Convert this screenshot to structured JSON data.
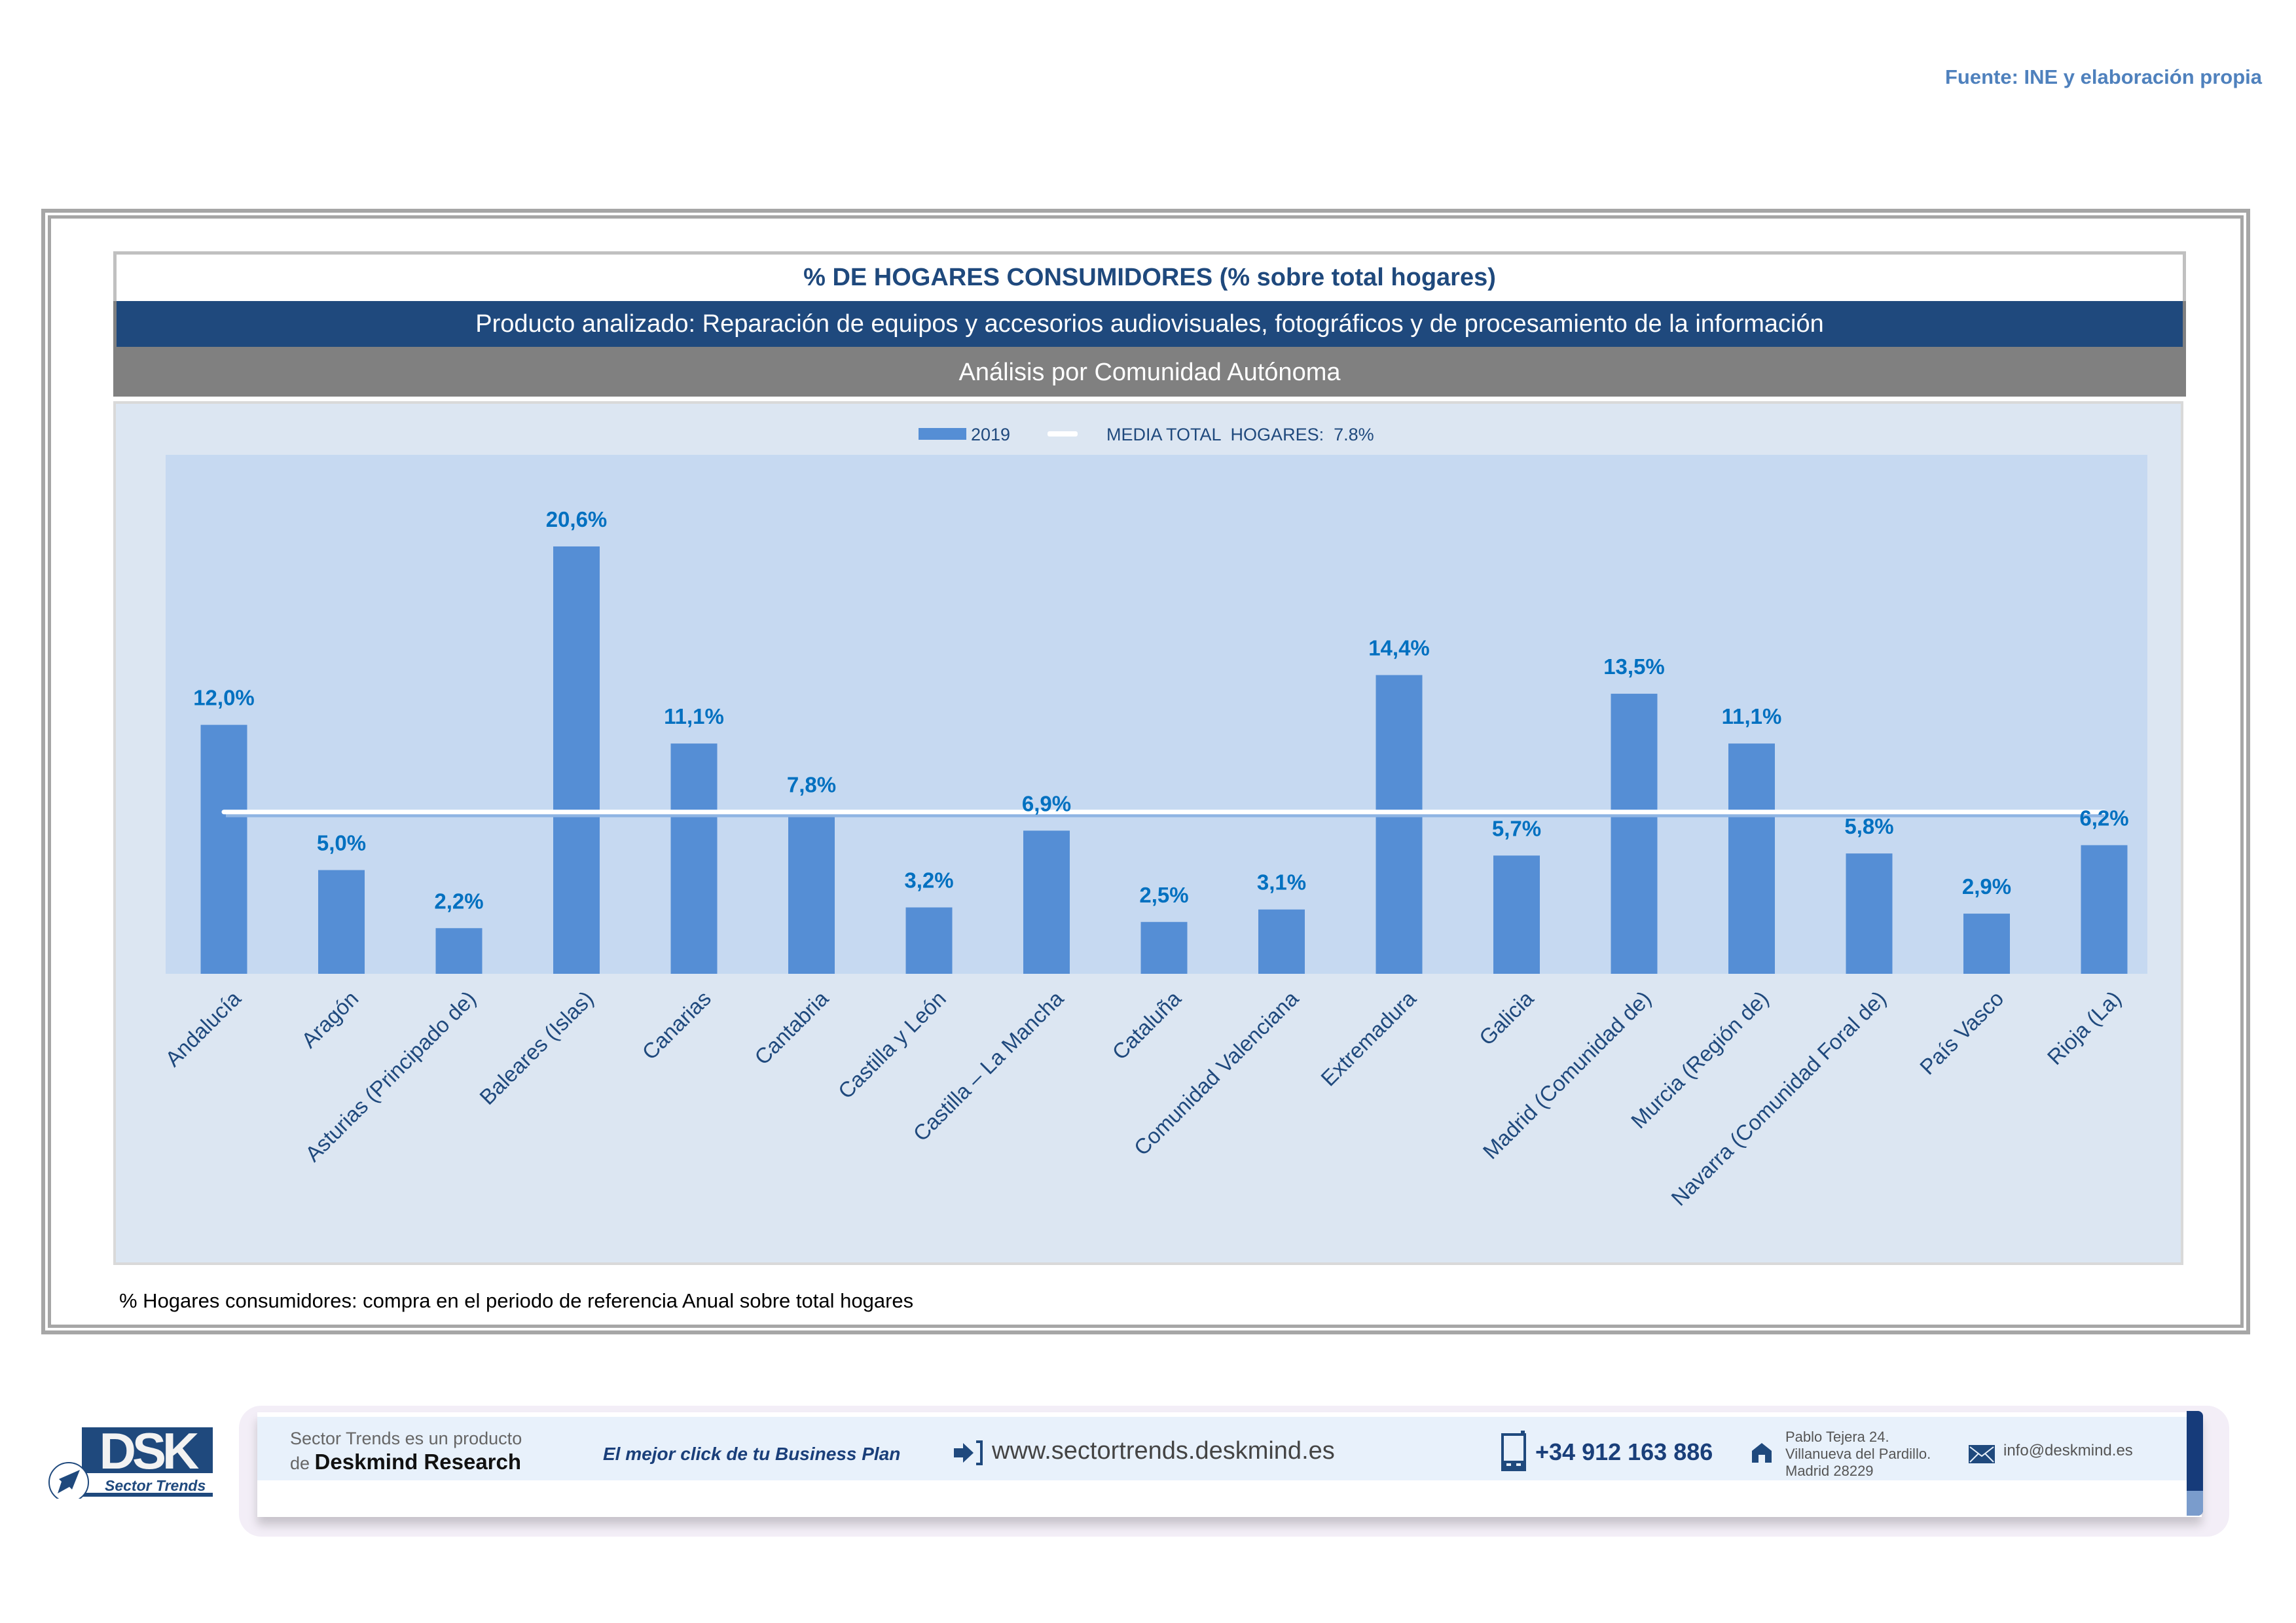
{
  "source": "Fuente: INE y elaboración propia",
  "header": {
    "title": "% DE HOGARES CONSUMIDORES (% sobre total hogares)",
    "product": "Producto analizado: Reparación de equipos y accesorios audiovisuales, fotográficos y de procesamiento de la información",
    "analysis": "Análisis por Comunidad Autónoma"
  },
  "footnote": "% Hogares consumidores: compra en el periodo de referencia Anual sobre total hogares",
  "colors": {
    "bar": "#558ed5",
    "plot_bg": "#c6d9f1",
    "chart_bg": "#dce6f2",
    "media_line": "#ffffff",
    "value_label": "#0070c0",
    "category_label": "#1f497d",
    "title": "#1f497d",
    "product_bg": "#1f497d",
    "analysis_bg": "#808080"
  },
  "chart_data": {
    "type": "bar",
    "title": "% DE HOGARES CONSUMIDORES (% sobre total hogares)",
    "xlabel": "",
    "ylabel": "",
    "ylim": [
      0,
      23
    ],
    "grid": false,
    "legend_position": "top-center",
    "categories": [
      "Andalucía",
      "Aragón",
      "Asturias (Principado de)",
      "Baleares (Islas)",
      "Canarias",
      "Cantabria",
      "Castilla y León",
      "Castilla – La Mancha",
      "Cataluña",
      "Comunidad Valenciana",
      "Extremadura",
      "Galicia",
      "Madrid (Comunidad de)",
      "Murcia (Región de)",
      "Navarra (Comunidad Foral de)",
      "País Vasco",
      "Rioja (La)"
    ],
    "series": [
      {
        "name": "2019",
        "type": "bar",
        "values": [
          12.0,
          5.0,
          2.2,
          20.6,
          11.1,
          7.8,
          3.2,
          6.9,
          2.5,
          3.1,
          14.4,
          5.7,
          13.5,
          11.1,
          5.8,
          2.9,
          6.2
        ],
        "labels": [
          "12,0%",
          "5,0%",
          "2,2%",
          "20,6%",
          "11,1%",
          "7,8%",
          "3,2%",
          "6,9%",
          "2,5%",
          "3,1%",
          "14,4%",
          "5,7%",
          "13,5%",
          "11,1%",
          "5,8%",
          "2,9%",
          "6,2%"
        ]
      },
      {
        "name": "MEDIA TOTAL  HOGARES:  7.8%",
        "type": "line",
        "value": 7.8
      }
    ]
  },
  "footer": {
    "logo_text": "DSK",
    "logo_subtitle": "Sector Trends",
    "product_line1": "Sector Trends es un producto",
    "product_line2_prefix": "de ",
    "product_line2_brand": "Deskmind Research",
    "slogan": "El mejor click de tu Business Plan",
    "url": "www.sectortrends.deskmind.es",
    "phone": "+34 912 163 886",
    "address_line1": "Pablo Tejera 24.",
    "address_line2": "Villanueva del Pardillo.",
    "address_line3": "Madrid 28229",
    "email": "info@deskmind.es",
    "icons": [
      "login-arrow-icon",
      "mobile-phone-icon",
      "home-icon",
      "envelope-icon"
    ]
  }
}
